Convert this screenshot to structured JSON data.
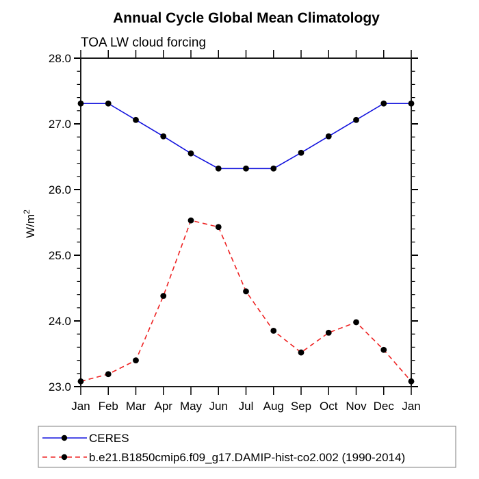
{
  "header": {
    "title": "Annual Cycle Global Mean Climatology",
    "subtitle": "TOA LW cloud forcing"
  },
  "y_axis": {
    "label_base": "W/m",
    "label_sup": "2",
    "tick_labels": [
      "28.0",
      "27.0",
      "26.0",
      "25.0",
      "24.0",
      "23.0"
    ]
  },
  "chart_data": {
    "type": "line",
    "title": "Annual Cycle Global Mean Climatology",
    "subtitle": "TOA LW cloud forcing",
    "xlabel": "",
    "ylabel": "W/m²",
    "categories": [
      "Jan",
      "Feb",
      "Mar",
      "Apr",
      "May",
      "Jun",
      "Jul",
      "Aug",
      "Sep",
      "Oct",
      "Nov",
      "Dec",
      "Jan"
    ],
    "ylim": [
      23.0,
      28.0
    ],
    "yticks": [
      23.0,
      24.0,
      25.0,
      26.0,
      27.0,
      28.0
    ],
    "minor_tick_step": 0.2,
    "grid": false,
    "legend_position": "bottom-left-box",
    "series": [
      {
        "name": "CERES",
        "color": "#1111dd",
        "line_style": "solid",
        "marker": "filled-circle",
        "marker_color": "#000000",
        "values": [
          27.31,
          27.31,
          27.06,
          26.81,
          26.55,
          26.32,
          26.32,
          26.32,
          26.56,
          26.81,
          27.06,
          27.31,
          27.31
        ]
      },
      {
        "name": "b.e21.B1850cmip6.f09_g17.DAMIP-hist-co2.002 (1990-2014)",
        "color": "#ee2222",
        "line_style": "dashed",
        "marker": "filled-circle",
        "marker_color": "#000000",
        "values": [
          23.08,
          23.19,
          23.4,
          24.38,
          25.53,
          25.43,
          24.45,
          23.85,
          23.52,
          23.82,
          23.98,
          23.56,
          23.08
        ]
      }
    ]
  }
}
